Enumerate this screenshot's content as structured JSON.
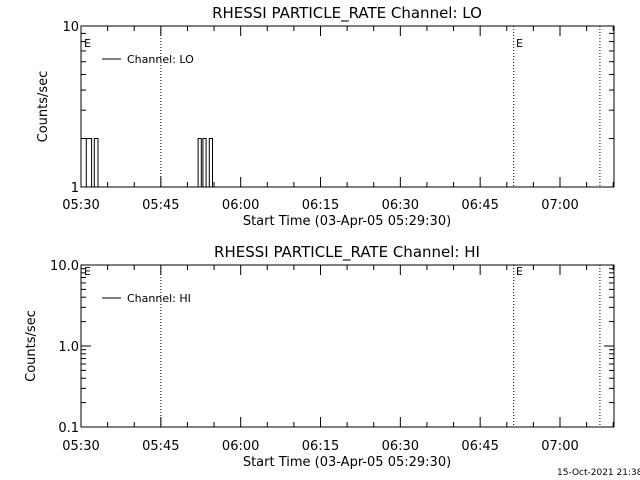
{
  "chart_data": [
    {
      "type": "line",
      "title": "RHESSI PARTICLE_RATE Channel: LO",
      "xlabel": "Start Time (03-Apr-05 05:29:30)",
      "ylabel": "Counts/sec",
      "yscale": "log",
      "ylim": [
        1,
        10
      ],
      "ytick_labels": [
        "1",
        "10"
      ],
      "xlim_minutes": [
        0,
        47.5
      ],
      "xtick_labels": [
        "05:30",
        "05:45",
        "06:00",
        "06:15",
        "06:30",
        "06:45",
        "07:00"
      ],
      "legend": {
        "placement": "top-left",
        "entries": [
          "Channel: LO"
        ]
      },
      "markers": [
        "E",
        "E"
      ],
      "series": [
        {
          "x": [
            1.0,
            1.0,
            2.0,
            2.0,
            2.5,
            2.5,
            3.2,
            3.2,
            22.0,
            22.0,
            22.6,
            22.6,
            22.9,
            22.9,
            23.5,
            23.5,
            24.1,
            24.1,
            24.7,
            24.7
          ],
          "values": [
            1,
            2,
            2,
            1,
            1,
            2,
            2,
            1,
            1,
            2,
            2,
            1,
            1,
            2,
            2,
            1,
            1,
            2,
            2,
            1
          ]
        }
      ]
    },
    {
      "type": "line",
      "title": "RHESSI PARTICLE_RATE Channel: HI",
      "xlabel": "Start Time (03-Apr-05 05:29:30)",
      "ylabel": "Counts/sec",
      "yscale": "log",
      "ylim": [
        0.1,
        10
      ],
      "ytick_labels": [
        "0.1",
        "1.0",
        "10.0"
      ],
      "xlim_minutes": [
        0,
        47.5
      ],
      "xtick_labels": [
        "05:30",
        "05:45",
        "06:00",
        "06:15",
        "06:30",
        "06:45",
        "07:00"
      ],
      "legend": {
        "placement": "top-left",
        "entries": [
          "Channel: HI"
        ]
      },
      "markers": [
        "E",
        "E"
      ],
      "series": []
    }
  ],
  "footer": {
    "timestamp": "15-Oct-2021 21:38"
  }
}
